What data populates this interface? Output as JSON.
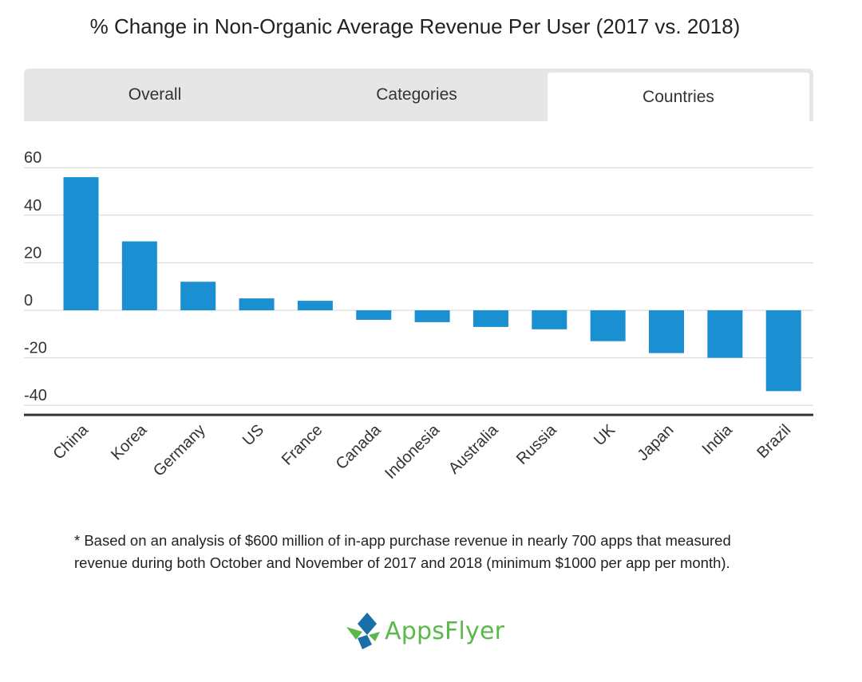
{
  "title": "% Change in Non-Organic Average Revenue Per User (2017 vs. 2018)",
  "tabs": [
    {
      "label": "Overall",
      "active": false
    },
    {
      "label": "Categories",
      "active": false
    },
    {
      "label": "Countries",
      "active": true
    }
  ],
  "chart_data": {
    "type": "bar",
    "title": "",
    "xlabel": "",
    "ylabel": "",
    "categories": [
      "China",
      "Korea",
      "Germany",
      "US",
      "France",
      "Canada",
      "Indonesia",
      "Australia",
      "Russia",
      "UK",
      "Japan",
      "India",
      "Brazil"
    ],
    "values": [
      56,
      29,
      12,
      5,
      4,
      -4,
      -5,
      -7,
      -8,
      -13,
      -18,
      -20,
      -34
    ],
    "ylim": [
      -44,
      60
    ],
    "yticks": [
      60,
      40,
      20,
      0,
      -20,
      -40
    ],
    "grid": true,
    "bar_color": "#1a8fd2"
  },
  "footnote": "* Based on an analysis of $600 million of in-app purchase revenue in nearly 700 apps that measured revenue during both October and November of 2017 and 2018 (minimum $1000 per app per month).",
  "logo": {
    "text": "AppsFlyer",
    "colors": {
      "green": "#5bb84a",
      "blue": "#1b6fa8"
    }
  }
}
